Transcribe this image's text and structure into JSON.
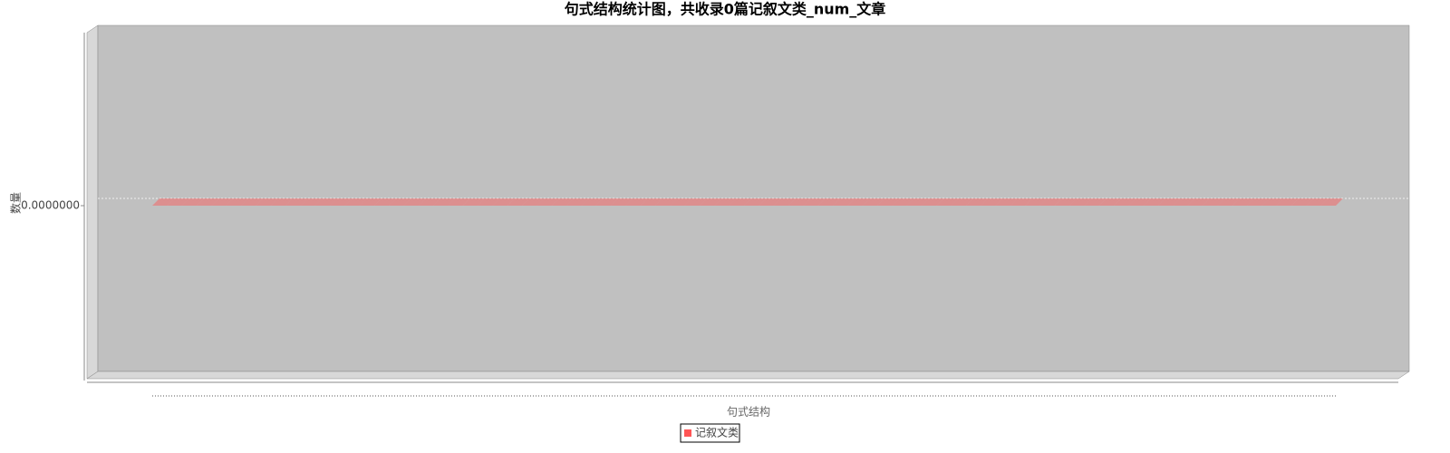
{
  "chart_data": {
    "type": "bar3d",
    "title": "句式结构统计图，共收录0篇记叙文类_num_文章",
    "y_label": "数量",
    "x_label": "句式结构",
    "categories": [
      null,
      null,
      null,
      null,
      null,
      null,
      null,
      null,
      null,
      null,
      null,
      null,
      null,
      null,
      null,
      null,
      null,
      null,
      null,
      null,
      null,
      null,
      null,
      null,
      null,
      null,
      null,
      null,
      null,
      null,
      null,
      null,
      null,
      null,
      null,
      null,
      null,
      null,
      null,
      null,
      null,
      null,
      null,
      null,
      null,
      null,
      null,
      null,
      null,
      null,
      null,
      null,
      null,
      null,
      null,
      null,
      null,
      null,
      null,
      null,
      null,
      null,
      null,
      null,
      null,
      null,
      null,
      null,
      null,
      null,
      null,
      null,
      null,
      null,
      null,
      null,
      null,
      null,
      null,
      null
    ],
    "series": [
      {
        "name": "记叙文类",
        "color": "#ff5555",
        "values": [
          0,
          0,
          0,
          0,
          0,
          0,
          0,
          0,
          0,
          0,
          0,
          0,
          0,
          0,
          0,
          0,
          0,
          0,
          0,
          0,
          0,
          0,
          0,
          0,
          0,
          0,
          0,
          0,
          0,
          0,
          0,
          0,
          0,
          0,
          0,
          0,
          0,
          0,
          0,
          0,
          0,
          0,
          0,
          0,
          0,
          0,
          0,
          0,
          0,
          0,
          0,
          0,
          0,
          0,
          0,
          0,
          0,
          0,
          0,
          0,
          0,
          0,
          0,
          0,
          0,
          0,
          0,
          0,
          0,
          0,
          0,
          0,
          0,
          0,
          0,
          0,
          0,
          0,
          0,
          0
        ]
      }
    ],
    "ylim": [
      -1,
      1
    ],
    "yticks": [
      {
        "value": 0,
        "label": "0.0000000"
      }
    ],
    "grid": true
  }
}
